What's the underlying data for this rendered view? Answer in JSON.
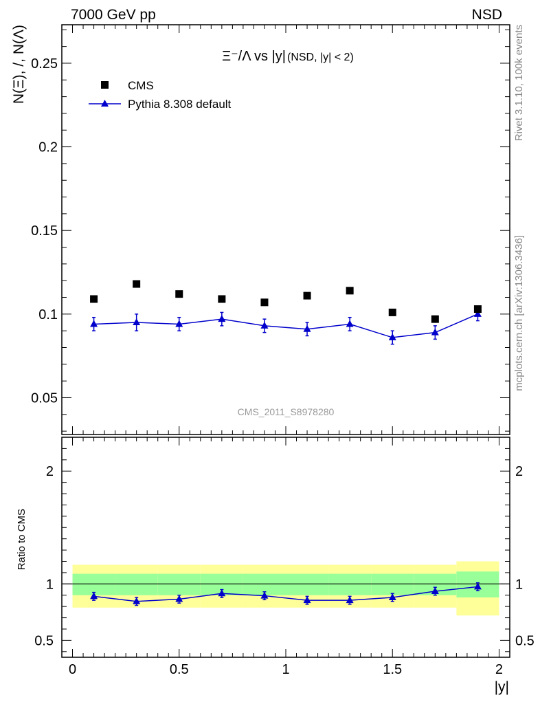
{
  "header": {
    "left": "7000 GeV pp",
    "right": "NSD"
  },
  "plot_title": {
    "main": "Ξ⁻/Λ vs |y|",
    "suffix": "(NSD, |y| < 2)"
  },
  "side_labels": {
    "rivet": "Rivet 3.1.10,  100k events",
    "mcplots": "mcplots.cern.ch [arXiv:1306.3436]"
  },
  "watermark": "CMS_2011_S8978280",
  "legend": {
    "data_label": "CMS",
    "mc_label": "Pythia 8.308 default"
  },
  "colors": {
    "mc": "#0000cc",
    "data": "#000000",
    "band_inner": "#99ff99",
    "band_outer": "#ffff99"
  },
  "chart_data": [
    {
      "type": "scatter",
      "ylabel": "N(Ξ), /, N(Λ)",
      "xlim": [
        -0.05,
        2.05
      ],
      "ylim": [
        0.028,
        0.273
      ],
      "yticks": [
        "0.05",
        "0.1",
        "0.15",
        "0.2",
        "0.25"
      ],
      "legend_position": "top-left",
      "x": [
        0.1,
        0.3,
        0.5,
        0.7,
        0.9,
        1.1,
        1.3,
        1.5,
        1.7,
        1.9
      ],
      "series": [
        {
          "name": "CMS",
          "values": [
            0.109,
            0.118,
            0.112,
            0.109,
            0.107,
            0.111,
            0.114,
            0.101,
            0.097,
            0.103
          ]
        },
        {
          "name": "Pythia 8.308 default",
          "values": [
            0.094,
            0.095,
            0.094,
            0.097,
            0.093,
            0.091,
            0.094,
            0.086,
            0.089,
            0.1
          ],
          "errors": [
            0.004,
            0.005,
            0.004,
            0.004,
            0.004,
            0.004,
            0.004,
            0.004,
            0.004,
            0.004
          ]
        }
      ]
    },
    {
      "type": "line",
      "ylabel": "Ratio to CMS",
      "xlabel": "|y|",
      "xlim": [
        -0.05,
        2.05
      ],
      "ylim": [
        0.35,
        2.3
      ],
      "yticks": [
        "0.5",
        "1",
        "2"
      ],
      "xticks": [
        "0",
        "0.5",
        "1",
        "1.5",
        "2"
      ],
      "bins": [
        [
          0.0,
          0.2
        ],
        [
          0.2,
          0.4
        ],
        [
          0.4,
          0.6
        ],
        [
          0.6,
          0.8
        ],
        [
          0.8,
          1.0
        ],
        [
          1.0,
          1.2
        ],
        [
          1.2,
          1.4
        ],
        [
          1.4,
          1.6
        ],
        [
          1.6,
          1.8
        ],
        [
          1.8,
          2.0
        ]
      ],
      "band_inner": [
        [
          0.9,
          1.09
        ],
        [
          0.9,
          1.09
        ],
        [
          0.9,
          1.09
        ],
        [
          0.9,
          1.09
        ],
        [
          0.9,
          1.09
        ],
        [
          0.9,
          1.09
        ],
        [
          0.9,
          1.09
        ],
        [
          0.9,
          1.09
        ],
        [
          0.9,
          1.09
        ],
        [
          0.88,
          1.11
        ]
      ],
      "band_outer": [
        [
          0.79,
          1.17
        ],
        [
          0.79,
          1.17
        ],
        [
          0.79,
          1.17
        ],
        [
          0.79,
          1.17
        ],
        [
          0.79,
          1.17
        ],
        [
          0.79,
          1.17
        ],
        [
          0.79,
          1.17
        ],
        [
          0.79,
          1.17
        ],
        [
          0.79,
          1.17
        ],
        [
          0.72,
          1.2
        ]
      ],
      "x": [
        0.1,
        0.3,
        0.5,
        0.7,
        0.9,
        1.1,
        1.3,
        1.5,
        1.7,
        1.9
      ],
      "series": [
        {
          "name": "Pythia 8.308 default",
          "values": [
            0.89,
            0.845,
            0.865,
            0.915,
            0.895,
            0.855,
            0.855,
            0.88,
            0.935,
            0.975
          ],
          "errors": [
            0.035,
            0.035,
            0.035,
            0.035,
            0.035,
            0.035,
            0.035,
            0.035,
            0.035,
            0.035
          ]
        }
      ]
    }
  ]
}
